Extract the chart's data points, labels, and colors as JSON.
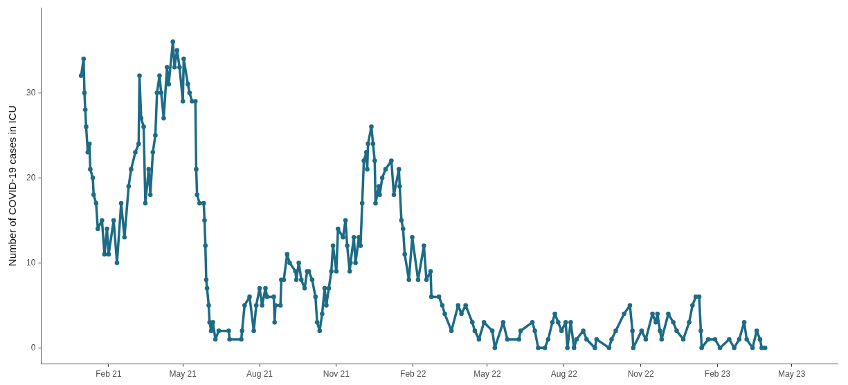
{
  "chart_data": {
    "type": "line",
    "ylabel": "Number of COVID-19 cases in ICU",
    "marker": "circle",
    "line_style": "solid",
    "xlim": [
      "2020-11-12",
      "2023-06-25"
    ],
    "ylim": [
      -1.9,
      40
    ],
    "yticks": [
      0,
      10,
      20,
      30
    ],
    "xticks": [
      {
        "value": "2021-02-01",
        "label": "Feb 21"
      },
      {
        "value": "2021-05-01",
        "label": "May 21"
      },
      {
        "value": "2021-08-01",
        "label": "Aug 21"
      },
      {
        "value": "2021-11-01",
        "label": "Nov 21"
      },
      {
        "value": "2022-02-01",
        "label": "Feb 22"
      },
      {
        "value": "2022-05-01",
        "label": "May 22"
      },
      {
        "value": "2022-08-01",
        "label": "Aug 22"
      },
      {
        "value": "2022-11-01",
        "label": "Nov 22"
      },
      {
        "value": "2023-02-01",
        "label": "Feb 23"
      },
      {
        "value": "2023-05-01",
        "label": "May 23"
      }
    ],
    "x": [
      "2020-12-30",
      "2021-01-02",
      "2021-01-03",
      "2021-01-04",
      "2021-01-05",
      "2021-01-07",
      "2021-01-09",
      "2021-01-10",
      "2021-01-13",
      "2021-01-14",
      "2021-01-17",
      "2021-01-19",
      "2021-01-24",
      "2021-01-27",
      "2021-01-30",
      "2021-02-01",
      "2021-02-07",
      "2021-02-11",
      "2021-02-16",
      "2021-02-20",
      "2021-02-25",
      "2021-02-28",
      "2021-03-05",
      "2021-03-09",
      "2021-03-10",
      "2021-03-12",
      "2021-03-15",
      "2021-03-17",
      "2021-03-21",
      "2021-03-23",
      "2021-03-26",
      "2021-03-29",
      "2021-03-31",
      "2021-04-03",
      "2021-04-05",
      "2021-04-08",
      "2021-04-12",
      "2021-04-14",
      "2021-04-19",
      "2021-04-21",
      "2021-04-24",
      "2021-04-27",
      "2021-05-01",
      "2021-05-02",
      "2021-05-07",
      "2021-05-09",
      "2021-05-12",
      "2021-05-16",
      "2021-05-17",
      "2021-05-18",
      "2021-05-21",
      "2021-05-26",
      "2021-05-27",
      "2021-05-28",
      "2021-05-29",
      "2021-05-30",
      "2021-06-01",
      "2021-06-02",
      "2021-06-04",
      "2021-06-06",
      "2021-06-09",
      "2021-06-13",
      "2021-06-25",
      "2021-06-26",
      "2021-07-10",
      "2021-07-11",
      "2021-07-14",
      "2021-07-20",
      "2021-07-25",
      "2021-07-28",
      "2021-08-01",
      "2021-08-04",
      "2021-08-08",
      "2021-08-10",
      "2021-08-18",
      "2021-08-19",
      "2021-08-20",
      "2021-08-26",
      "2021-08-27",
      "2021-08-30",
      "2021-09-03",
      "2021-09-06",
      "2021-09-13",
      "2021-09-14",
      "2021-09-17",
      "2021-09-20",
      "2021-09-24",
      "2021-09-27",
      "2021-09-29",
      "2021-10-03",
      "2021-10-07",
      "2021-10-09",
      "2021-10-12",
      "2021-10-15",
      "2021-10-18",
      "2021-10-20",
      "2021-10-23",
      "2021-10-26",
      "2021-10-28",
      "2021-11-01",
      "2021-11-03",
      "2021-11-09",
      "2021-11-12",
      "2021-11-14",
      "2021-11-17",
      "2021-11-18",
      "2021-11-22",
      "2021-11-24",
      "2021-11-28",
      "2021-11-30",
      "2021-12-02",
      "2021-12-04",
      "2021-12-07",
      "2021-12-08",
      "2021-12-09",
      "2021-12-13",
      "2021-12-15",
      "2021-12-17",
      "2021-12-18",
      "2021-12-22",
      "2021-12-23",
      "2021-12-26",
      "2021-12-30",
      "2022-01-06",
      "2022-01-09",
      "2022-01-15",
      "2022-01-16",
      "2022-01-18",
      "2022-01-20",
      "2022-01-22",
      "2022-01-27",
      "2022-01-31",
      "2022-02-07",
      "2022-02-14",
      "2022-02-17",
      "2022-02-22",
      "2022-02-23",
      "2022-03-04",
      "2022-03-08",
      "2022-03-11",
      "2022-03-19",
      "2022-03-27",
      "2022-03-31",
      "2022-04-05",
      "2022-04-13",
      "2022-04-16",
      "2022-04-21",
      "2022-04-27",
      "2022-05-07",
      "2022-05-10",
      "2022-05-20",
      "2022-05-25",
      "2022-06-08",
      "2022-06-10",
      "2022-06-24",
      "2022-06-27",
      "2022-07-01",
      "2022-07-09",
      "2022-07-13",
      "2022-07-18",
      "2022-07-21",
      "2022-07-25",
      "2022-07-29",
      "2022-08-03",
      "2022-08-05",
      "2022-08-09",
      "2022-08-13",
      "2022-08-16",
      "2022-08-24",
      "2022-08-28",
      "2022-09-07",
      "2022-09-09",
      "2022-09-24",
      "2022-09-27",
      "2022-10-02",
      "2022-10-12",
      "2022-10-19",
      "2022-10-22",
      "2022-10-23",
      "2022-11-02",
      "2022-11-07",
      "2022-11-15",
      "2022-11-19",
      "2022-11-21",
      "2022-11-24",
      "2022-11-26",
      "2022-12-04",
      "2022-12-10",
      "2022-12-14",
      "2022-12-22",
      "2022-12-29",
      "2023-01-02",
      "2023-01-06",
      "2023-01-10",
      "2023-01-12",
      "2023-01-13",
      "2023-01-21",
      "2023-01-29",
      "2023-02-04",
      "2023-02-15",
      "2023-02-21",
      "2023-02-27",
      "2023-03-05",
      "2023-03-08",
      "2023-03-15",
      "2023-03-20",
      "2023-03-24",
      "2023-03-26",
      "2023-03-30"
    ],
    "series": [
      {
        "color": "#1d6b85",
        "values": [
          32,
          34,
          30,
          28,
          26,
          23,
          24,
          21,
          20,
          18,
          17,
          14,
          15,
          11,
          14,
          11,
          15,
          10,
          17,
          13,
          19,
          21,
          23,
          24,
          32,
          27,
          26,
          17,
          21,
          18,
          23,
          25,
          30,
          32,
          30,
          27,
          33,
          31,
          36,
          33,
          35,
          33,
          29,
          34,
          31,
          30,
          29,
          29,
          21,
          18,
          17,
          17,
          15,
          12,
          8,
          7,
          5,
          3,
          2,
          3,
          1,
          2,
          2,
          1,
          1,
          2,
          5,
          6,
          2,
          5,
          7,
          5,
          7,
          6,
          6,
          3,
          5,
          5,
          8,
          8,
          11,
          10,
          9,
          8,
          10,
          8,
          7,
          9,
          9,
          8,
          6,
          3,
          2,
          4,
          7,
          5,
          7,
          9,
          12,
          9,
          14,
          13,
          15,
          12,
          9,
          10,
          13,
          10,
          13,
          12,
          17,
          22,
          23,
          21,
          24,
          26,
          24,
          22,
          17,
          19,
          18,
          20,
          21,
          22,
          18,
          21,
          19,
          15,
          14,
          11,
          8,
          13,
          8,
          12,
          8,
          9,
          6,
          6,
          5,
          4,
          2,
          5,
          4,
          5,
          3,
          2,
          1,
          3,
          2,
          0,
          3,
          1,
          1,
          2,
          3,
          2,
          0,
          0,
          1,
          3,
          4,
          3,
          2,
          3,
          0,
          3,
          0,
          1,
          2,
          1,
          0,
          1,
          0,
          1,
          2,
          4,
          5,
          2,
          0,
          2,
          1,
          4,
          3,
          4,
          2,
          1,
          4,
          3,
          2,
          1,
          3,
          5,
          6,
          6,
          2,
          0,
          1,
          1,
          0,
          1,
          0,
          1,
          3,
          1,
          0,
          2,
          1,
          0,
          0
        ]
      }
    ]
  }
}
